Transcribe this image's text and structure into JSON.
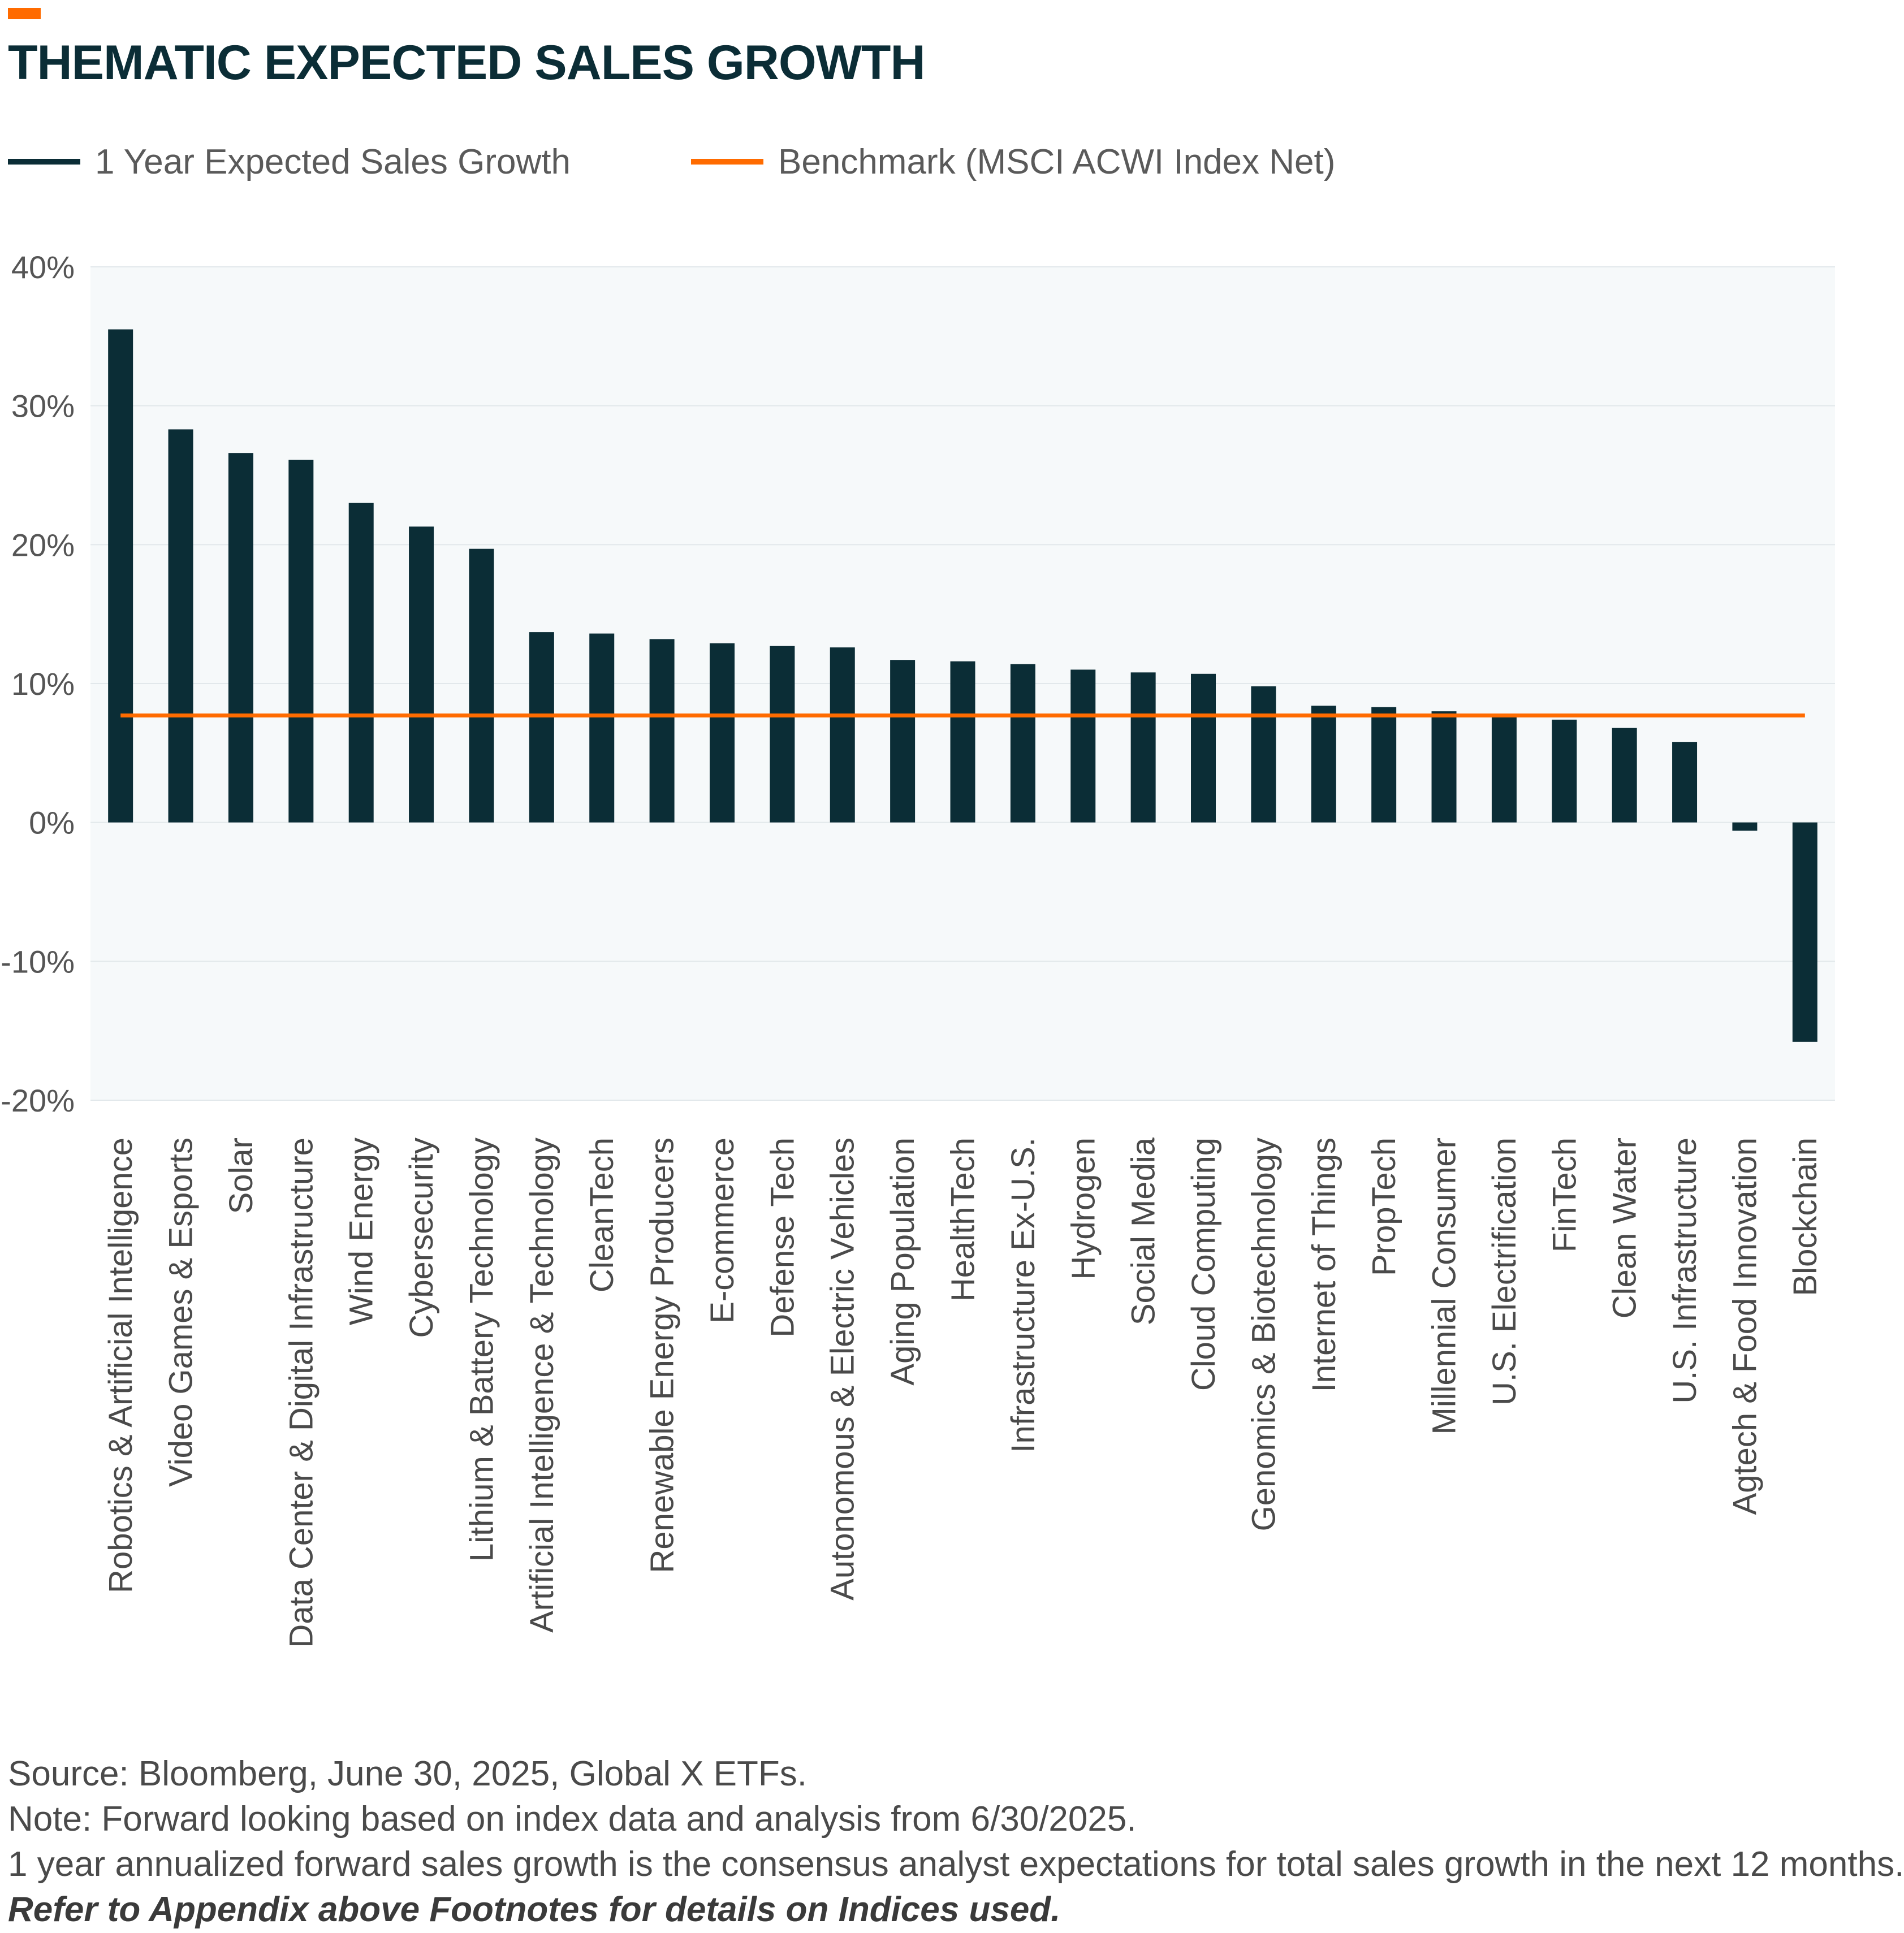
{
  "header": {
    "title": "THEMATIC EXPECTED SALES GROWTH",
    "accent_color": "#ff6b00"
  },
  "legend": [
    {
      "label": "1 Year Expected Sales Growth",
      "color": "#0b2d36"
    },
    {
      "label": "Benchmark (MSCI ACWI Index Net)",
      "color": "#ff6b00"
    }
  ],
  "chart_data": {
    "type": "bar",
    "title": "THEMATIC EXPECTED SALES GROWTH",
    "xlabel": "",
    "ylabel": "",
    "ylim": [
      -20,
      40
    ],
    "yticks": [
      40,
      30,
      20,
      10,
      0,
      -10,
      -20
    ],
    "ytick_labels": [
      "40%",
      "30%",
      "20%",
      "10%",
      "0%",
      "-10%",
      "-20%"
    ],
    "grid": true,
    "legend_position": "top-left",
    "bar_color": "#0b2d36",
    "benchmark_color": "#ff6b00",
    "plot_background": "#f6f9fa",
    "categories": [
      "Robotics & Artificial Intelligence",
      "Video Games & Esports",
      "Solar",
      "Data Center & Digital Infrastructure",
      "Wind Energy",
      "Cybersecurity",
      "Lithium & Battery Technology",
      "Artificial Intelligence & Technology",
      "CleanTech",
      "Renewable Energy Producers",
      "E-commerce",
      "Defense Tech",
      "Autonomous & Electric Vehicles",
      "Aging Population",
      "HealthTech",
      "Infrastructure Ex-U.S.",
      "Hydrogen",
      "Social Media",
      "Cloud Computing",
      "Genomics & Biotechnology",
      "Internet of Things",
      "PropTech",
      "Millennial Consumer",
      "U.S. Electrification",
      "FinTech",
      "Clean Water",
      "U.S. Infrastructure",
      "Agtech & Food Innovation",
      "Blockchain"
    ],
    "series": [
      {
        "name": "1 Year Expected Sales Growth",
        "type": "bar",
        "values": [
          35.5,
          28.3,
          26.6,
          26.1,
          23.0,
          21.3,
          19.7,
          13.7,
          13.6,
          13.2,
          12.9,
          12.7,
          12.6,
          11.7,
          11.6,
          11.4,
          11.0,
          10.8,
          10.7,
          9.8,
          8.4,
          8.3,
          8.0,
          7.7,
          7.4,
          6.8,
          5.8,
          -0.6,
          -15.8
        ]
      },
      {
        "name": "Benchmark (MSCI ACWI Index Net)",
        "type": "line",
        "value": 7.7
      }
    ]
  },
  "notes": {
    "source": "Source: Bloomberg, June 30, 2025, Global X ETFs.",
    "note": "Note: Forward looking based on index data and analysis from 6/30/2025.",
    "definition": "1 year annualized forward sales growth is the consensus analyst expectations for total sales growth in the next 12 months.",
    "appendix": "Refer to Appendix above Footnotes for details on Indices used."
  }
}
